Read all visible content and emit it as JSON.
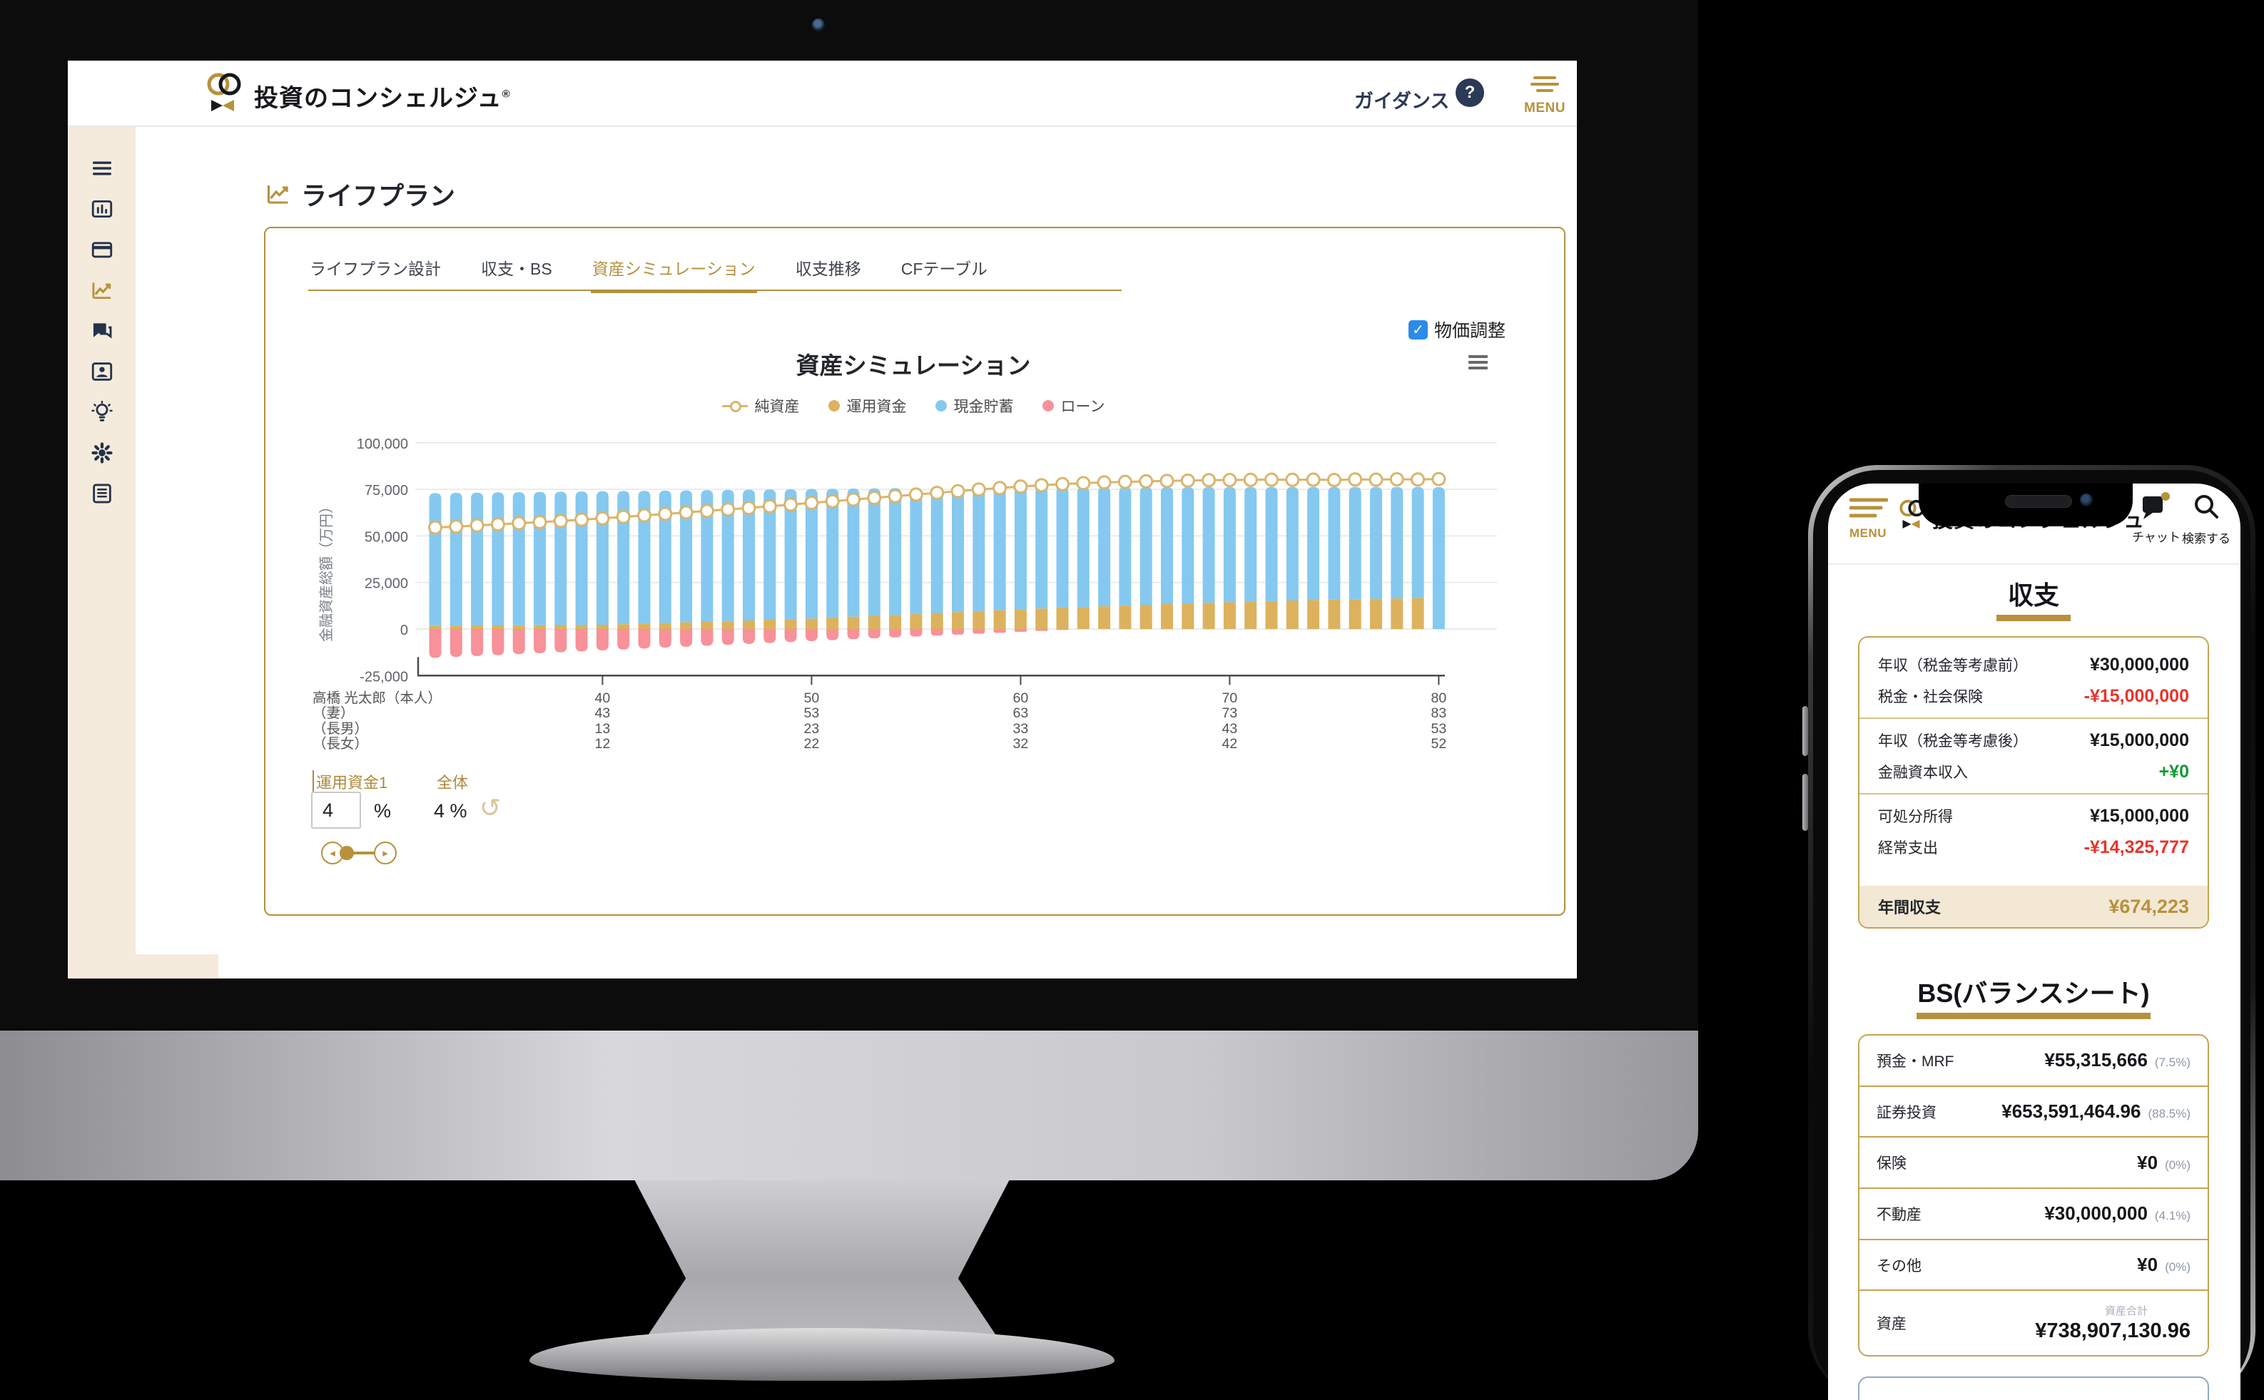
{
  "desktop": {
    "navbar": {
      "brand": "投資のコンシェルジュ",
      "brand_mark": "®",
      "guidance": "ガイダンス",
      "help_glyph": "?",
      "menu": "MENU"
    },
    "sidebar_icons": [
      "hamburger-icon",
      "dashboard-icon",
      "card-icon",
      "trend-icon",
      "chat-icon",
      "idcard-icon",
      "bulb-icon",
      "gear-icon",
      "document-icon"
    ],
    "sidebar_active_index": 3,
    "page_title": "ライフプラン",
    "tabs": [
      {
        "label": "ライフプラン設計",
        "active": false
      },
      {
        "label": "収支・BS",
        "active": false
      },
      {
        "label": "資産シミュレーション",
        "active": true
      },
      {
        "label": "収支推移",
        "active": false
      },
      {
        "label": "CFテーブル",
        "active": false
      }
    ],
    "price_adjust": {
      "label": "物価調整",
      "checked": true,
      "check_glyph": "✓"
    },
    "controls": {
      "fund_label": "運用資金1",
      "overall_label": "全体",
      "fund_value": "4",
      "percent_sign": "%",
      "overall_value": "4 %",
      "undo_glyph": "↺",
      "slider_left_glyph": "◂",
      "slider_right_glyph": "▸"
    }
  },
  "chart_data": {
    "type": "bar",
    "stacked": true,
    "title": "資産シミュレーション",
    "ylabel": "金融資産総額（万円）",
    "ylim": [
      -25000,
      100000
    ],
    "grid": true,
    "legend_position": "top",
    "ytick_values": [
      100000,
      75000,
      50000,
      25000,
      0,
      -25000
    ],
    "ytick_labels": [
      "100,000",
      "75,000",
      "50,000",
      "25,000",
      "0",
      "-25,000"
    ],
    "x_ages": [
      32,
      33,
      34,
      35,
      36,
      37,
      38,
      39,
      40,
      41,
      42,
      43,
      44,
      45,
      46,
      47,
      48,
      49,
      50,
      51,
      52,
      53,
      54,
      55,
      56,
      57,
      58,
      59,
      60,
      61,
      62,
      63,
      64,
      65,
      66,
      67,
      68,
      69,
      70,
      71,
      72,
      73,
      74,
      75,
      76,
      77,
      78,
      79,
      80
    ],
    "tick_ages": [
      40,
      50,
      60,
      70,
      80
    ],
    "legend": [
      {
        "name": "純資産",
        "marker": "line",
        "color": "#d9b56c"
      },
      {
        "name": "運用資金",
        "marker": "dot",
        "color": "#dcb25e"
      },
      {
        "name": "現金貯蓄",
        "marker": "dot",
        "color": "#85c9f0"
      },
      {
        "name": "ローン",
        "marker": "dot",
        "color": "#f7919a"
      }
    ],
    "series": [
      {
        "name": "現金貯蓄",
        "type": "bar",
        "color": "#85c9f0",
        "values": [
          71200,
          71320,
          71340,
          71460,
          71480,
          71600,
          71620,
          71740,
          71660,
          71480,
          71300,
          71120,
          70840,
          70560,
          70380,
          70200,
          69920,
          69740,
          69560,
          69180,
          68800,
          68420,
          68040,
          67660,
          67280,
          66900,
          66520,
          66140,
          65700,
          65300,
          64900,
          64500,
          64100,
          63700,
          63300,
          62900,
          62500,
          62200,
          61900,
          61600,
          61300,
          61000,
          60700,
          60500,
          60300,
          60100,
          59900,
          59700,
          76200
        ]
      },
      {
        "name": "運用資金",
        "type": "bar",
        "color": "#dcb25e",
        "values": [
          1800,
          1800,
          1900,
          1900,
          2000,
          2000,
          2100,
          2100,
          2300,
          2600,
          2900,
          3200,
          3600,
          4000,
          4300,
          4600,
          5000,
          5300,
          5600,
          6100,
          6600,
          7100,
          7600,
          8100,
          8600,
          9100,
          9600,
          10100,
          10600,
          11000,
          11400,
          11800,
          12200,
          12600,
          13000,
          13400,
          13800,
          14100,
          14400,
          14700,
          15000,
          15300,
          15600,
          15800,
          16000,
          16200,
          16400,
          16600,
          0
        ]
      },
      {
        "name": "ローン",
        "type": "bar",
        "color": "#f7919a",
        "values": [
          -15500,
          -15000,
          -14500,
          -14000,
          -13500,
          -13000,
          -12500,
          -12000,
          -11500,
          -11000,
          -10500,
          -10000,
          -9500,
          -9000,
          -8500,
          -8000,
          -7500,
          -7000,
          -6500,
          -6000,
          -5500,
          -5000,
          -4500,
          -4000,
          -3500,
          -3000,
          -2500,
          -2000,
          -1500,
          -1000,
          -500,
          0,
          0,
          0,
          0,
          0,
          0,
          0,
          0,
          0,
          0,
          0,
          0,
          0,
          0,
          0,
          0,
          0,
          0
        ]
      },
      {
        "name": "純資産",
        "type": "line",
        "color": "#d9b56c",
        "values": [
          54500,
          55000,
          55600,
          56200,
          56800,
          57400,
          58000,
          58700,
          59400,
          60200,
          61000,
          61800,
          62600,
          63400,
          64200,
          65000,
          65900,
          66800,
          67700,
          68600,
          69500,
          70400,
          71300,
          72200,
          73100,
          74000,
          74900,
          75700,
          76500,
          77200,
          77800,
          78300,
          78700,
          79000,
          79300,
          79500,
          79700,
          79900,
          80000,
          80100,
          80200,
          80100,
          80200,
          80000,
          80300,
          80200,
          80400,
          80300,
          80500
        ]
      }
    ],
    "family_rows": [
      {
        "name": "高橋 光太郎（本人）",
        "ages": [
          "40",
          "50",
          "60",
          "70",
          "80"
        ]
      },
      {
        "name": "（妻）",
        "ages": [
          "43",
          "53",
          "63",
          "73",
          "83"
        ]
      },
      {
        "name": "（長男）",
        "ages": [
          "13",
          "23",
          "33",
          "43",
          "53"
        ]
      },
      {
        "name": "（長女）",
        "ages": [
          "12",
          "22",
          "32",
          "42",
          "52"
        ]
      }
    ]
  },
  "phone": {
    "header": {
      "menu": "MENU",
      "brand": "投資のコンシェルジュ",
      "chat": "チャット",
      "search": "検索する"
    },
    "income": {
      "title": "収支",
      "rows": [
        {
          "label": "年収（税金等考慮前）",
          "value": "¥30,000,000",
          "tone": "dark",
          "divider_after": false
        },
        {
          "label": "税金・社会保険",
          "value": "-¥15,000,000",
          "tone": "red",
          "divider_after": true
        },
        {
          "label": "年収（税金等考慮後）",
          "value": "¥15,000,000",
          "tone": "dark",
          "divider_after": false
        },
        {
          "label": "金融資本収入",
          "value": "+¥0",
          "tone": "green",
          "divider_after": true
        },
        {
          "label": "可処分所得",
          "value": "¥15,000,000",
          "tone": "dark",
          "divider_after": false
        },
        {
          "label": "経常支出",
          "value": "-¥14,325,777",
          "tone": "red",
          "divider_after": false
        }
      ],
      "total": {
        "label": "年間収支",
        "value": "¥674,223"
      }
    },
    "bs": {
      "title": "BS(バランスシート)",
      "rows": [
        {
          "label": "預金・MRF",
          "value": "¥55,315,666",
          "pct": "(7.5%)"
        },
        {
          "label": "証券投資",
          "value": "¥653,591,464.96",
          "pct": "(88.5%)"
        },
        {
          "label": "保険",
          "value": "¥0",
          "pct": "(0%)"
        },
        {
          "label": "不動産",
          "value": "¥30,000,000",
          "pct": "(4.1%)"
        },
        {
          "label": "その他",
          "value": "¥0",
          "pct": "(0%)"
        }
      ],
      "total": {
        "label": "資産",
        "sub": "資産合計",
        "value": "¥738,907,130.96"
      }
    }
  }
}
